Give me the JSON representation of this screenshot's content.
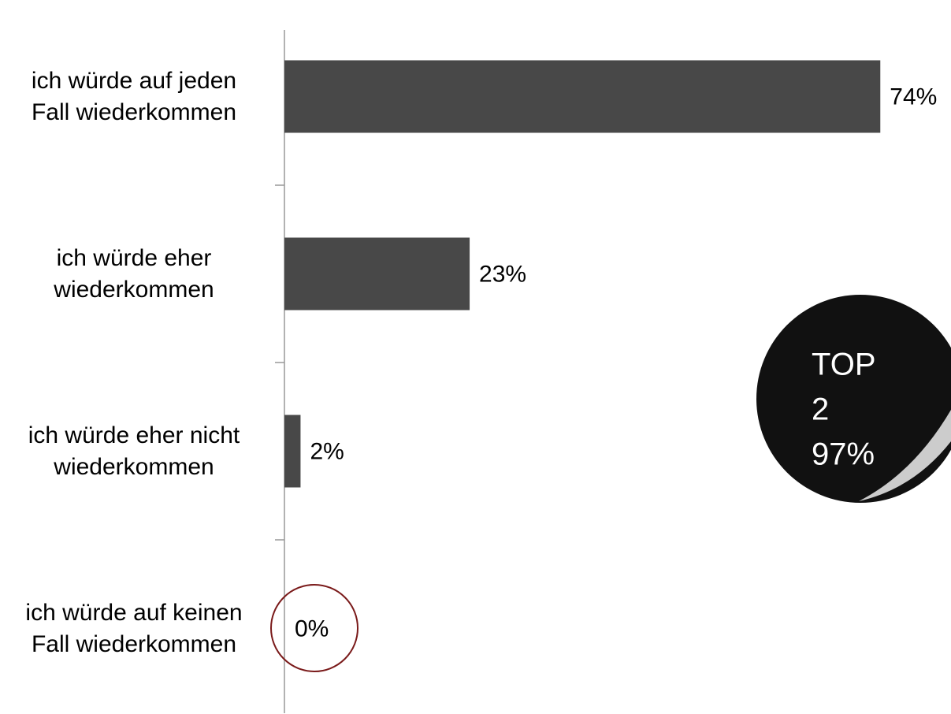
{
  "chart_data": {
    "type": "bar",
    "orientation": "horizontal",
    "categories": [
      "ich würde auf jeden\nFall wiederkommen",
      "ich würde eher \nwiederkommen",
      "ich würde eher nicht\nwiederkommen",
      "ich würde auf keinen\nFall wiederkommen"
    ],
    "values": [
      74,
      23,
      2,
      0
    ],
    "value_labels": [
      "74%",
      "23%",
      "2%",
      "0%"
    ],
    "color": "#484848",
    "annotation": [
      "TOP",
      "2",
      "97%"
    ]
  }
}
